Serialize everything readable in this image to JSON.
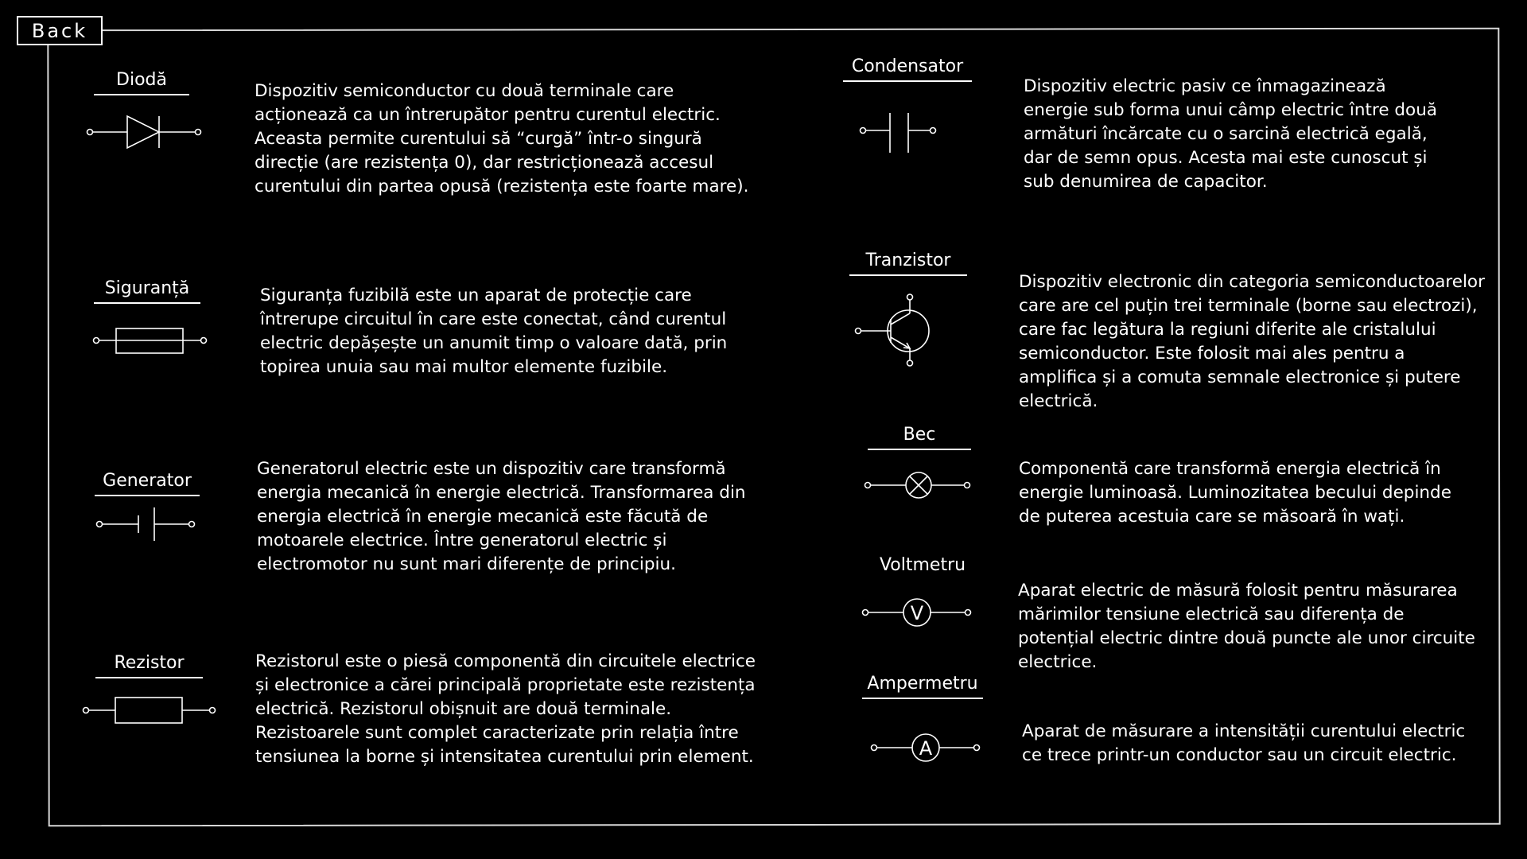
{
  "nav": {
    "back_label": "Back"
  },
  "components": {
    "dioda": {
      "name": "Diodă",
      "description": " Dispozitiv semiconductor cu două terminale care acționează ca un întrerupător pentru curentul electric. Aceasta permite curentului să  “curgă” într-o singură direcție (are rezistența 0), dar restricționează accesul curentului din partea opusă (rezistența este  foarte mare).",
      "icon": "diode-symbol"
    },
    "siguranta": {
      "name": "Siguranță",
      "description": "Siguranța fuzibilă este un aparat de protecție care întrerupe circuitul în care este conectat, când curentul electric depășește un anumit timp o valoare dată, prin topirea unuia sau mai multor elemente fuzibile.",
      "icon": "fuse-symbol"
    },
    "generator": {
      "name": "Generator",
      "description": "Generatorul electric este un dispozitiv care transformă energia mecanică în energie electrică. Transformarea din energia electrică în energie mecanică este făcută de motoarele electrice. Între generatorul electric și electromotor nu sunt mari diferențe de principiu.",
      "icon": "generator-symbol"
    },
    "rezistor": {
      "name": "Rezistor",
      "description": "Rezistorul este o piesă componentă din circuitele electrice și electronice a cărei principală proprietate este rezistența electrică. Rezistorul obișnuit are două terminale. Rezistoarele sunt complet caracterizate prin relația între tensiunea la borne și intensitatea curentului prin element.",
      "icon": "resistor-symbol"
    },
    "condensator": {
      "name": "Condensator",
      "description": "Dispozitiv electric pasiv ce înmagazinează energie sub forma unui câmp electric între două armături încărcate cu o sarcină electrică egală, dar de semn opus. Acesta mai este cunoscut și sub denumirea de capacitor.",
      "icon": "capacitor-symbol"
    },
    "tranzistor": {
      "name": "Tranzistor",
      "description": "Dispozitiv electronic din categoria semiconductoarelor care are cel puțin trei terminale (borne sau electrozi), care fac legătura la regiuni diferite ale cristalului semiconductor. Este folosit mai ales pentru a amplifica și a comuta semnale electronice și putere electrică.",
      "icon": "transistor-symbol"
    },
    "bec": {
      "name": "Bec",
      "description": "Componentă care transformă energia electrică în energie luminoasă. Luminozitatea becului depinde de puterea acestuia care se măsoară în wați.",
      "icon": "lamp-symbol"
    },
    "voltmetru": {
      "name": "Voltmetru",
      "description": "Aparat electric de măsură folosit pentru măsurarea mărimilor tensiune electrică sau diferența de potențial electric dintre două puncte ale unor circuite electrice.",
      "icon": "voltmeter-symbol"
    },
    "ampermetru": {
      "name": "Ampermetru",
      "description": "Aparat de măsurare a intensității curentului electric ce trece printr-un conductor sau un circuit electric.",
      "icon": "ammeter-symbol"
    }
  },
  "symbol_letters": {
    "voltmeter": "V",
    "ammeter": "A"
  },
  "colors": {
    "background": "#000000",
    "foreground": "#ffffff",
    "frame": "#d8d8d8"
  }
}
